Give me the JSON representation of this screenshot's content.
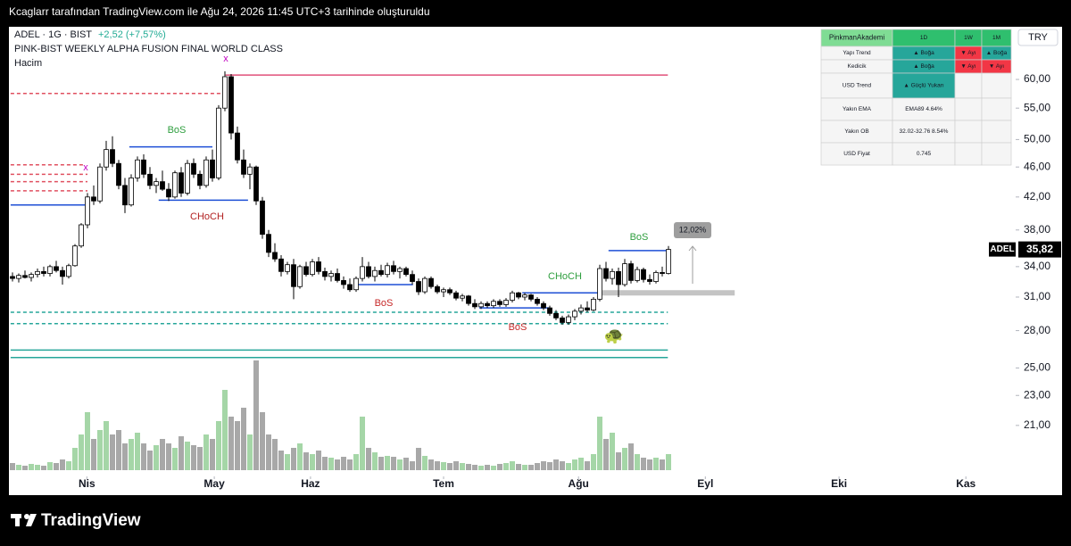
{
  "snapshot_note": "Kcaglarr tarafından TradingView.com ile Ağu 24, 2026 11:45 UTC+3 tarihinde oluşturuldu",
  "brand": "TradingView",
  "chart_data": {
    "type": "candlestick",
    "symbol": "ADEL · 1G · BIST",
    "change": "+2,52 (+7,57%)",
    "indicator": "PINK-BIST WEEKLY ALPHA FUSION FINAL WORLD CLASS",
    "volume_label": "Hacim",
    "currency": "TRY",
    "ticker": "ADEL",
    "last_price": {
      "value": 35.82,
      "label": "35,82"
    },
    "log_scale": true,
    "ylim": [
      17.7,
      70.4
    ],
    "yticks": [
      {
        "value": 21,
        "label": "21,00"
      },
      {
        "value": 23,
        "label": "23,00"
      },
      {
        "value": 25,
        "label": "25,00"
      },
      {
        "value": 28,
        "label": "28,00"
      },
      {
        "value": 31,
        "label": "31,00"
      },
      {
        "value": 34,
        "label": "34,00"
      },
      {
        "value": 38,
        "label": "38,00"
      },
      {
        "value": 42,
        "label": "42,00"
      },
      {
        "value": 46,
        "label": "46,00"
      },
      {
        "value": 50,
        "label": "50,00"
      },
      {
        "value": 55,
        "label": "55,00"
      },
      {
        "value": 60,
        "label": "60,00"
      }
    ],
    "xticks": [
      {
        "value": 11.9,
        "label": "Nis"
      },
      {
        "value": 32.3,
        "label": "May"
      },
      {
        "value": 47.7,
        "label": "Haz"
      },
      {
        "value": 69,
        "label": "Tem"
      },
      {
        "value": 90.6,
        "label": "Ağu"
      },
      {
        "value": 110.9,
        "label": "Eyl"
      },
      {
        "value": 132.3,
        "label": "Eki"
      },
      {
        "value": 152.6,
        "label": "Kas"
      }
    ],
    "up_color": "#ffffff",
    "down_color": "#000000",
    "volume_up_color": "#a5d6a7",
    "volume_down_color": "#a8a8a8",
    "vlim": [
      0,
      130
    ],
    "ohlc": [
      [
        33,
        33.4,
        32.5,
        32.8
      ],
      [
        32.8,
        33.3,
        32.4,
        33.1
      ],
      [
        33.1,
        33.6,
        32.8,
        32.9
      ],
      [
        32.9,
        33.4,
        32.5,
        33.2
      ],
      [
        33.2,
        33.8,
        32.9,
        33.5
      ],
      [
        33.5,
        34,
        33,
        33.3
      ],
      [
        33.3,
        34.2,
        33,
        34
      ],
      [
        34,
        34.6,
        33.4,
        33.6
      ],
      [
        33.6,
        34,
        32.2,
        33
      ],
      [
        33,
        34.3,
        32.8,
        34.1
      ],
      [
        34.1,
        36.4,
        34,
        36.2
      ],
      [
        36.2,
        38.8,
        36,
        38.6
      ],
      [
        38.6,
        42.5,
        38.2,
        42
      ],
      [
        42,
        43.5,
        41,
        41.5
      ],
      [
        41.5,
        46.5,
        41.2,
        46
      ],
      [
        46,
        49.8,
        45.5,
        48.5
      ],
      [
        48.5,
        50.5,
        46,
        46.5
      ],
      [
        46.5,
        47,
        43,
        43.5
      ],
      [
        43.5,
        44.5,
        40,
        41
      ],
      [
        41,
        45,
        40.8,
        44.5
      ],
      [
        44.5,
        47.5,
        44,
        47
      ],
      [
        47,
        47.8,
        44.5,
        45
      ],
      [
        45,
        46,
        43,
        43.5
      ],
      [
        43.5,
        44.5,
        42.5,
        44
      ],
      [
        44,
        45.5,
        42.8,
        43
      ],
      [
        43,
        43.8,
        41.5,
        42
      ],
      [
        42,
        45.5,
        41.8,
        45.2
      ],
      [
        45.2,
        46,
        42,
        42.5
      ],
      [
        42.5,
        47,
        42.2,
        46.5
      ],
      [
        46.5,
        47.2,
        44.5,
        45
      ],
      [
        45,
        45.5,
        43,
        43.5
      ],
      [
        43.5,
        47.5,
        43.2,
        47
      ],
      [
        47,
        48.5,
        44,
        44.5
      ],
      [
        44.5,
        55.5,
        44.2,
        55
      ],
      [
        55,
        61.5,
        54.5,
        60.5
      ],
      [
        60.5,
        61,
        50,
        51
      ],
      [
        51,
        52,
        46.5,
        47
      ],
      [
        47,
        48.5,
        44.5,
        45
      ],
      [
        45,
        46.5,
        43,
        46
      ],
      [
        46,
        46.2,
        41,
        41.5
      ],
      [
        41.5,
        42,
        37,
        37.5
      ],
      [
        37.5,
        38,
        35,
        35.5
      ],
      [
        35.5,
        36.5,
        34.5,
        34.8
      ],
      [
        34.8,
        35.2,
        33,
        33.5
      ],
      [
        33.5,
        34.5,
        33.2,
        34.2
      ],
      [
        34.2,
        34.8,
        30.8,
        32
      ],
      [
        32,
        34.2,
        31.8,
        34
      ],
      [
        34,
        34.5,
        33,
        33.2
      ],
      [
        33.2,
        34.8,
        33,
        34.5
      ],
      [
        34.5,
        35,
        33.2,
        33.5
      ],
      [
        33.5,
        33.9,
        32.6,
        33
      ],
      [
        33,
        33.6,
        32.5,
        33.3
      ],
      [
        33.3,
        33.8,
        32.4,
        32.6
      ],
      [
        32.6,
        33,
        31.8,
        32.2
      ],
      [
        32.2,
        32.8,
        31.5,
        31.7
      ],
      [
        31.7,
        33,
        31.5,
        32.8
      ],
      [
        32.8,
        35,
        32.5,
        34
      ],
      [
        34,
        34.5,
        32.8,
        33
      ],
      [
        33,
        34,
        32.5,
        33.6
      ],
      [
        33.6,
        34.2,
        33,
        33.2
      ],
      [
        33.2,
        34.4,
        32.9,
        34.1
      ],
      [
        34.1,
        34.6,
        33.2,
        33.5
      ],
      [
        33.5,
        34,
        32.8,
        33.8
      ],
      [
        33.8,
        34,
        33,
        33.2
      ],
      [
        33.2,
        33.6,
        32.2,
        32.5
      ],
      [
        32.5,
        32.8,
        31.2,
        31.5
      ],
      [
        31.5,
        33,
        31.3,
        32.8
      ],
      [
        32.8,
        33,
        31.8,
        32
      ],
      [
        32,
        32.2,
        31.3,
        31.5
      ],
      [
        31.5,
        31.9,
        31,
        31.7
      ],
      [
        31.7,
        31.9,
        31.2,
        31.4
      ],
      [
        31.4,
        31.6,
        30.7,
        30.9
      ],
      [
        30.9,
        31.3,
        30.6,
        31.1
      ],
      [
        31.1,
        31.2,
        30.2,
        30.4
      ],
      [
        30.4,
        30.8,
        29.9,
        30.1
      ],
      [
        30.1,
        30.6,
        29.9,
        30.4
      ],
      [
        30.4,
        30.6,
        30,
        30.2
      ],
      [
        30.2,
        30.8,
        30,
        30.6
      ],
      [
        30.6,
        30.8,
        30.1,
        30.3
      ],
      [
        30.3,
        30.9,
        30.1,
        30.7
      ],
      [
        30.7,
        31.6,
        30.5,
        31.4
      ],
      [
        31.4,
        31.5,
        30.8,
        31
      ],
      [
        31,
        31.4,
        30.7,
        31.2
      ],
      [
        31.2,
        31.3,
        30.6,
        30.8
      ],
      [
        30.8,
        31,
        30.2,
        30.4
      ],
      [
        30.4,
        30.6,
        29.8,
        30
      ],
      [
        30,
        30.2,
        29.3,
        29.5
      ],
      [
        29.5,
        29.8,
        28.9,
        29.1
      ],
      [
        29.1,
        29.3,
        28.5,
        28.7
      ],
      [
        28.7,
        29.4,
        28.5,
        29.2
      ],
      [
        29.2,
        29.9,
        28.9,
        29.7
      ],
      [
        29.7,
        30.3,
        29.4,
        30
      ],
      [
        30,
        30.6,
        29.6,
        29.8
      ],
      [
        29.8,
        31,
        29.7,
        30.8
      ],
      [
        30.8,
        34.2,
        30.6,
        33.8
      ],
      [
        33.8,
        34.5,
        32.5,
        32.8
      ],
      [
        32.8,
        33.8,
        32.2,
        33.5
      ],
      [
        33.5,
        33.9,
        31,
        32.2
      ],
      [
        32.2,
        34.8,
        32,
        34.3
      ],
      [
        34.3,
        34.6,
        32.3,
        32.6
      ],
      [
        32.6,
        34,
        32.4,
        33.7
      ],
      [
        33.7,
        33.9,
        32.4,
        32.7
      ],
      [
        32.7,
        33.2,
        32.2,
        32.5
      ],
      [
        32.5,
        33.6,
        32.3,
        33.4
      ],
      [
        33.4,
        34,
        33,
        33.3
      ],
      [
        33.3,
        36.2,
        33.2,
        35.82
      ]
    ],
    "volume": [
      8,
      6,
      5,
      7,
      6,
      5,
      9,
      8,
      12,
      10,
      25,
      40,
      65,
      35,
      45,
      55,
      40,
      45,
      30,
      35,
      42,
      30,
      22,
      28,
      35,
      30,
      25,
      38,
      32,
      28,
      26,
      40,
      35,
      55,
      90,
      60,
      55,
      70,
      40,
      123,
      65,
      40,
      35,
      22,
      18,
      25,
      30,
      20,
      18,
      22,
      15,
      14,
      12,
      15,
      12,
      18,
      60,
      25,
      20,
      15,
      16,
      15,
      12,
      14,
      10,
      25,
      16,
      12,
      10,
      9,
      8,
      10,
      8,
      7,
      6,
      5,
      6,
      5,
      7,
      8,
      10,
      7,
      6,
      6,
      8,
      10,
      9,
      12,
      10,
      8,
      12,
      14,
      10,
      18,
      60,
      35,
      42,
      20,
      25,
      30,
      18,
      14,
      12,
      14,
      12,
      18
    ],
    "levels": [
      {
        "price": 41.0,
        "from": -0.3,
        "to": 11.6,
        "color": "#1e4fd6",
        "style": "solid"
      },
      {
        "price": 48.9,
        "from": 18.7,
        "to": 32,
        "color": "#1e4fd6",
        "style": "solid"
      },
      {
        "price": 41.6,
        "from": 23.4,
        "to": 37.7,
        "color": "#1e4fd6",
        "style": "solid"
      },
      {
        "price": 32.2,
        "from": 54.7,
        "to": 64.1,
        "color": "#1e4fd6",
        "style": "solid"
      },
      {
        "price": 30.0,
        "from": 74.7,
        "to": 85.9,
        "color": "#1e4fd6",
        "style": "solid"
      },
      {
        "price": 31.4,
        "from": 81.6,
        "to": 94.4,
        "color": "#1e4fd6",
        "style": "solid"
      },
      {
        "price": 35.7,
        "from": 95.4,
        "to": 104.9,
        "color": "#1e4fd6",
        "style": "solid"
      },
      {
        "price": 60.8,
        "from": 34.1,
        "to": 104.9,
        "color": "#e0507a",
        "style": "solid"
      },
      {
        "price": 57.5,
        "from": -0.3,
        "to": 34,
        "color": "#e05060",
        "style": "dashed"
      },
      {
        "price": 46.3,
        "from": -0.3,
        "to": 11.6,
        "color": "#e05060",
        "style": "dashed"
      },
      {
        "price": 45.0,
        "from": -0.3,
        "to": 12,
        "color": "#e05060",
        "style": "dashed"
      },
      {
        "price": 44.0,
        "from": -0.3,
        "to": 12,
        "color": "#e05060",
        "style": "dashed"
      },
      {
        "price": 42.8,
        "from": -0.3,
        "to": 12,
        "color": "#e05060",
        "style": "dashed"
      },
      {
        "price": 29.6,
        "from": -0.3,
        "to": 104.9,
        "color": "#26a69a",
        "style": "dashed"
      },
      {
        "price": 28.6,
        "from": -0.3,
        "to": 104.9,
        "color": "#26a69a",
        "style": "dashed"
      },
      {
        "price": 26.4,
        "from": -0.3,
        "to": 104.9,
        "color": "#26a69a",
        "style": "solid"
      },
      {
        "price": 25.8,
        "from": -0.3,
        "to": 104.9,
        "color": "#26a69a",
        "style": "solid"
      },
      {
        "price": 31.4,
        "from": 94.4,
        "to": 115.6,
        "color": "#c4c4c4",
        "style": "band"
      }
    ],
    "annotations": [
      {
        "text": "BoS",
        "color": "#2e9e3e"
      },
      {
        "text": "CHoCH",
        "color": "#b22222"
      },
      {
        "text": "BoS",
        "color": "#c62828"
      },
      {
        "text": "CHoCH",
        "color": "#2e9e3e"
      },
      {
        "text": "BoS",
        "color": "#c62828"
      },
      {
        "text": "BoS",
        "color": "#2e9e3e"
      },
      {
        "text": "x",
        "color": "#c000c0"
      },
      {
        "text": "x",
        "color": "#c000c0"
      },
      {
        "text": "🐢",
        "color": "#2e7d32"
      }
    ],
    "range_label": "12,02%",
    "table": {
      "rows": [
        [
          "PinkmanAkademi",
          "1D",
          "1W",
          "1M"
        ],
        [
          "Yapı Trend",
          "▲ Boğa",
          "▼ Ayı",
          "▲ Boğa"
        ],
        [
          "Kedicik",
          "▲ Boğa",
          "▼ Ayı",
          "▼ Ayı"
        ],
        [
          "USD Trend",
          "▲ Güçlü Yukarı"
        ],
        [
          "Yakın EMA",
          "EMA89  4.64%"
        ],
        [
          "Yakın OB",
          "32.02-32.76  8.54%"
        ],
        [
          "USD Fiyat",
          "0.745"
        ]
      ]
    }
  }
}
